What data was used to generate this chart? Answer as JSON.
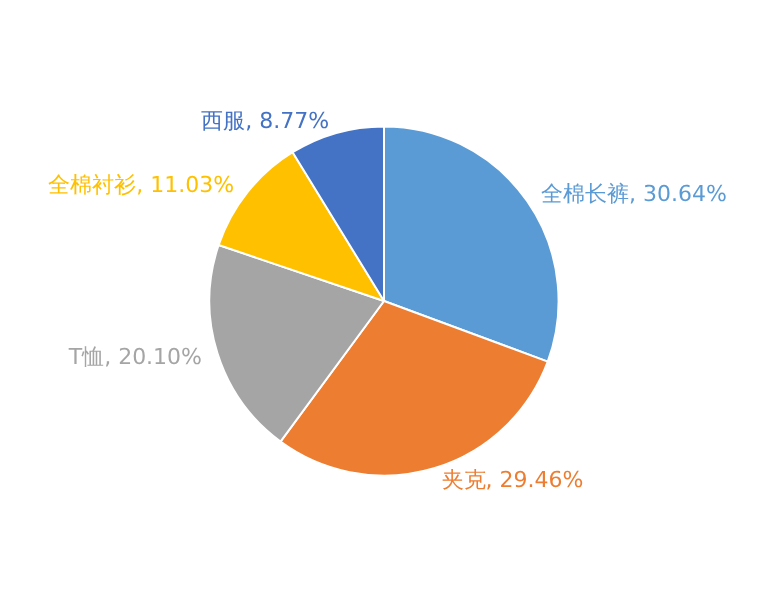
{
  "chart_data": {
    "type": "pie",
    "categories": [
      "全棉长裤",
      "夹克",
      "T恤",
      "全棉衬衫",
      "西服"
    ],
    "values": [
      30.64,
      29.46,
      20.1,
      11.03,
      8.77
    ],
    "colors": [
      "#5b9bd5",
      "#ed7d31",
      "#a5a5a5",
      "#ffc000",
      "#4472c4"
    ],
    "value_labels": [
      "30.64%",
      "29.46%",
      "20.10%",
      "11.03%",
      "8.77%"
    ]
  }
}
